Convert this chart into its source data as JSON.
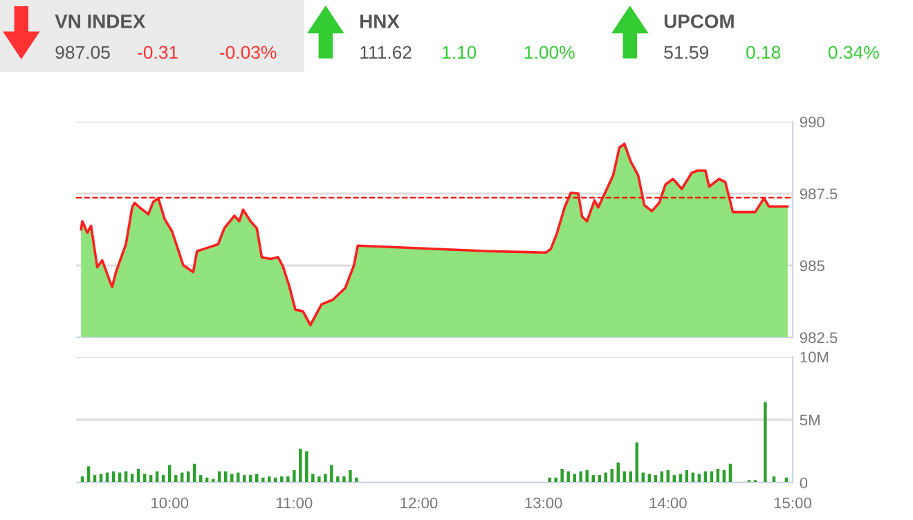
{
  "chart_data": [
    {
      "type": "other",
      "title": "VN INDEX",
      "annotations": [
        "987.05",
        "-0.31",
        "-0.03%"
      ],
      "colors": [
        "#555555",
        "#ff3333",
        "#ff3333"
      ]
    },
    {
      "type": "other",
      "title": "HNX",
      "annotations": [
        "111.62",
        "1.10",
        "1.00%"
      ],
      "colors": [
        "#555555",
        "#33cc33",
        "#33cc33"
      ]
    },
    {
      "type": "other",
      "title": "UPCOM",
      "annotations": [
        "51.59",
        "0.18",
        "0.34%"
      ],
      "colors": [
        "#555555",
        "#33cc33",
        "#33cc33"
      ]
    },
    {
      "type": "area",
      "xlim": [
        9.25,
        15.0
      ],
      "ylim": [
        982.5,
        990
      ],
      "yticks": [
        982.5,
        985,
        987.5,
        990
      ],
      "tick_labels": "y",
      "grid": "y",
      "ref_lines": [
        {
          "axis": "y",
          "value": 987.36,
          "color": "#ff0000",
          "line_style": "dashed"
        }
      ],
      "series": [
        {
          "type": "area",
          "color": "#90e27c",
          "x": [
            9.29,
            9.3,
            9.34,
            9.37,
            9.42,
            9.46,
            9.52,
            9.54,
            9.57,
            9.65,
            9.7,
            9.72,
            9.76,
            9.83,
            9.87,
            9.91,
            9.96,
            10.02,
            10.11,
            10.19,
            10.22,
            10.3,
            10.39,
            10.44,
            10.52,
            10.56,
            10.59,
            10.65,
            10.7,
            10.74,
            10.81,
            10.87,
            10.91,
            10.96,
            11.01,
            11.07,
            11.13,
            11.22,
            11.31,
            11.41,
            11.48,
            11.51,
            12.56,
            13.02,
            13.06,
            13.11,
            13.17,
            13.22,
            13.28,
            13.31,
            13.35,
            13.41,
            13.44,
            13.5,
            13.56,
            13.61,
            13.65,
            13.7,
            13.76,
            13.81,
            13.87,
            13.93,
            13.98,
            14.04,
            14.11,
            14.19,
            14.24,
            14.3,
            14.33,
            14.41,
            14.46,
            14.52,
            14.7,
            14.77,
            14.81,
            14.96
          ],
          "values": [
            986.25,
            986.54,
            986.14,
            986.38,
            984.94,
            985.18,
            984.46,
            984.26,
            984.77,
            985.74,
            987.02,
            987.18,
            987.02,
            986.78,
            987.22,
            987.34,
            986.62,
            986.19,
            985.01,
            984.77,
            985.5,
            985.61,
            985.74,
            986.3,
            986.73,
            986.54,
            986.94,
            986.54,
            986.3,
            985.29,
            985.23,
            985.29,
            984.97,
            984.29,
            983.46,
            983.41,
            982.93,
            983.65,
            983.81,
            984.22,
            985.01,
            985.69,
            985.5,
            985.45,
            985.58,
            986.14,
            987.02,
            987.53,
            987.5,
            986.7,
            986.54,
            987.26,
            987.02,
            987.58,
            988.14,
            989.1,
            989.23,
            988.62,
            988.14,
            987.1,
            986.89,
            987.18,
            987.82,
            988.01,
            987.66,
            988.22,
            988.3,
            988.3,
            987.74,
            988.01,
            987.9,
            986.86,
            986.86,
            987.34,
            987.05,
            987.05
          ]
        },
        {
          "type": "line",
          "color": "#ff2020",
          "x": [
            9.29,
            9.3,
            9.34,
            9.37,
            9.42,
            9.46,
            9.52,
            9.54,
            9.57,
            9.65,
            9.7,
            9.72,
            9.76,
            9.83,
            9.87,
            9.91,
            9.96,
            10.02,
            10.11,
            10.19,
            10.22,
            10.3,
            10.39,
            10.44,
            10.52,
            10.56,
            10.59,
            10.65,
            10.7,
            10.74,
            10.81,
            10.87,
            10.91,
            10.96,
            11.01,
            11.07,
            11.13,
            11.22,
            11.31,
            11.41,
            11.48,
            11.51,
            12.56,
            13.02,
            13.06,
            13.11,
            13.17,
            13.22,
            13.28,
            13.31,
            13.35,
            13.41,
            13.44,
            13.5,
            13.56,
            13.61,
            13.65,
            13.7,
            13.76,
            13.81,
            13.87,
            13.93,
            13.98,
            14.04,
            14.11,
            14.19,
            14.24,
            14.3,
            14.33,
            14.41,
            14.46,
            14.52,
            14.7,
            14.77,
            14.81,
            14.96
          ],
          "values": [
            986.25,
            986.54,
            986.14,
            986.38,
            984.94,
            985.18,
            984.46,
            984.26,
            984.77,
            985.74,
            987.02,
            987.18,
            987.02,
            986.78,
            987.22,
            987.34,
            986.62,
            986.19,
            985.01,
            984.77,
            985.5,
            985.61,
            985.74,
            986.3,
            986.73,
            986.54,
            986.94,
            986.54,
            986.3,
            985.29,
            985.23,
            985.29,
            984.97,
            984.29,
            983.46,
            983.41,
            982.93,
            983.65,
            983.81,
            984.22,
            985.01,
            985.69,
            985.5,
            985.45,
            985.58,
            986.14,
            987.02,
            987.53,
            987.5,
            986.7,
            986.54,
            987.26,
            987.02,
            987.58,
            988.14,
            989.1,
            989.23,
            988.62,
            988.14,
            987.1,
            986.89,
            987.18,
            987.82,
            988.01,
            987.66,
            988.22,
            988.3,
            988.3,
            987.74,
            988.01,
            987.9,
            986.86,
            986.86,
            987.34,
            987.05,
            987.05
          ]
        }
      ]
    },
    {
      "type": "bar",
      "xlim": [
        9.25,
        15.0
      ],
      "ylim": [
        0,
        10
      ],
      "yticks": [
        0,
        {
          "value": 5,
          "label": "5M"
        },
        {
          "value": 10,
          "label": "10M"
        }
      ],
      "xticks": [
        {
          "value": 10,
          "label": "10:00"
        },
        {
          "value": 11,
          "label": "11:00"
        },
        {
          "value": 12,
          "label": "12:00"
        },
        {
          "value": 13,
          "label": "13:00"
        },
        {
          "value": 14,
          "label": "14:00"
        },
        {
          "value": 15,
          "label": "15:00"
        }
      ],
      "grid": "y",
      "series": [
        {
          "color": "#2ea02e",
          "x": [
            9.3,
            9.35,
            9.4,
            9.45,
            9.5,
            9.55,
            9.6,
            9.65,
            9.7,
            9.75,
            9.8,
            9.85,
            9.9,
            9.95,
            10.0,
            10.05,
            10.1,
            10.15,
            10.2,
            10.25,
            10.3,
            10.35,
            10.4,
            10.45,
            10.5,
            10.55,
            10.6,
            10.65,
            10.7,
            10.75,
            10.8,
            10.85,
            10.9,
            10.95,
            11.0,
            11.05,
            11.1,
            11.15,
            11.2,
            11.25,
            11.3,
            11.35,
            11.4,
            11.45,
            11.5,
            13.05,
            13.1,
            13.15,
            13.2,
            13.25,
            13.3,
            13.35,
            13.4,
            13.45,
            13.5,
            13.55,
            13.6,
            13.65,
            13.7,
            13.75,
            13.8,
            13.85,
            13.9,
            13.95,
            14.0,
            14.05,
            14.1,
            14.15,
            14.2,
            14.25,
            14.3,
            14.35,
            14.4,
            14.45,
            14.5,
            14.65,
            14.7,
            14.78,
            14.85,
            14.95
          ],
          "values": [
            0.5,
            1.3,
            0.6,
            0.7,
            0.8,
            0.9,
            0.8,
            0.9,
            0.7,
            1.1,
            0.7,
            0.6,
            0.9,
            0.6,
            1.4,
            0.6,
            0.8,
            0.9,
            1.5,
            0.6,
            0.4,
            0.3,
            0.9,
            0.9,
            0.7,
            0.8,
            0.6,
            0.6,
            0.7,
            0.4,
            0.5,
            0.4,
            0.5,
            0.5,
            1.0,
            2.7,
            2.5,
            0.7,
            0.5,
            0.7,
            1.4,
            0.5,
            0.5,
            1.0,
            0.4,
            0.4,
            0.4,
            1.1,
            0.9,
            0.7,
            0.9,
            1.0,
            0.6,
            0.6,
            0.8,
            1.1,
            1.6,
            0.9,
            0.9,
            3.2,
            0.8,
            0.7,
            0.6,
            0.9,
            1.0,
            0.6,
            0.7,
            1.0,
            0.8,
            0.7,
            0.9,
            0.9,
            1.1,
            1.0,
            1.5,
            0.2,
            0.2,
            6.4,
            0.5,
            0.4
          ]
        }
      ]
    }
  ]
}
